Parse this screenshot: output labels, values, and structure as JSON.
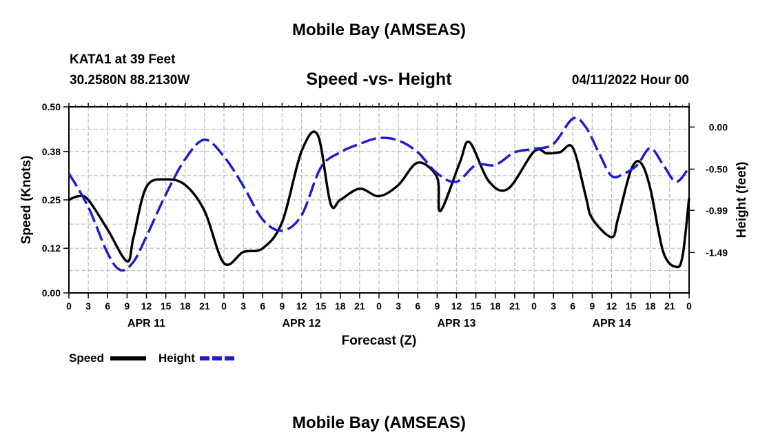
{
  "header": {
    "title_top": "Mobile Bay (AMSEAS)",
    "station": "KATA1 at 39 Feet",
    "coords": "30.2580N  88.2130W",
    "chart_title": "Speed -vs- Height",
    "datetime": "04/11/2022 Hour 00",
    "title_bottom": "Mobile Bay (AMSEAS)"
  },
  "legend": {
    "speed_label": "Speed",
    "height_label": "Height"
  },
  "colors": {
    "speed": "#000000",
    "height": "#1c1cd0",
    "grid": "#b8b8b8"
  },
  "chart_data": {
    "type": "line",
    "xlabel": "Forecast (Z)",
    "ylabel": "Speed (Knots)",
    "ylabel_right": "Height (feet)",
    "x_range": [
      0,
      96
    ],
    "x_tick_labels": [
      "0",
      "3",
      "6",
      "9",
      "12",
      "15",
      "18",
      "21",
      "0",
      "3",
      "6",
      "9",
      "12",
      "15",
      "18",
      "21",
      "0",
      "3",
      "6",
      "9",
      "12",
      "15",
      "18",
      "21",
      "0",
      "3",
      "6",
      "9",
      "12",
      "15",
      "18",
      "21",
      "0"
    ],
    "date_labels": [
      {
        "label": "APR 11",
        "hour": 12
      },
      {
        "label": "APR 12",
        "hour": 36
      },
      {
        "label": "APR 13",
        "hour": 60
      },
      {
        "label": "APR 14",
        "hour": 84
      }
    ],
    "y_left": {
      "range": [
        0,
        0.5
      ],
      "ticks": [
        0.0,
        0.12,
        0.25,
        0.38,
        0.5
      ],
      "tick_labels": [
        "0.00",
        "0.12",
        "0.25",
        "0.38",
        "0.50"
      ]
    },
    "y_right": {
      "range": [
        -1.97,
        0.24
      ],
      "ticks": [
        0.0,
        -0.5,
        -0.99,
        -1.49
      ],
      "tick_labels": [
        "0.00",
        "-0.50",
        "-0.99",
        "-1.49"
      ]
    },
    "series": [
      {
        "name": "Speed",
        "axis": "left",
        "style": "solid",
        "points": [
          [
            0,
            0.25
          ],
          [
            1.5,
            0.26
          ],
          [
            3,
            0.25
          ],
          [
            6,
            0.17
          ],
          [
            9,
            0.085
          ],
          [
            10,
            0.15
          ],
          [
            12,
            0.285
          ],
          [
            15,
            0.305
          ],
          [
            18,
            0.29
          ],
          [
            21,
            0.22
          ],
          [
            24,
            0.08
          ],
          [
            27,
            0.11
          ],
          [
            30,
            0.12
          ],
          [
            33,
            0.19
          ],
          [
            36,
            0.38
          ],
          [
            38.5,
            0.425
          ],
          [
            40.5,
            0.24
          ],
          [
            42,
            0.25
          ],
          [
            45,
            0.28
          ],
          [
            48,
            0.26
          ],
          [
            51,
            0.29
          ],
          [
            54,
            0.35
          ],
          [
            57,
            0.31
          ],
          [
            57.5,
            0.22
          ],
          [
            60.5,
            0.35
          ],
          [
            62,
            0.405
          ],
          [
            65,
            0.3
          ],
          [
            68,
            0.28
          ],
          [
            72,
            0.38
          ],
          [
            74,
            0.375
          ],
          [
            76,
            0.378
          ],
          [
            78,
            0.39
          ],
          [
            80,
            0.26
          ],
          [
            81,
            0.2
          ],
          [
            84,
            0.15
          ],
          [
            85,
            0.2
          ],
          [
            87,
            0.33
          ],
          [
            88.5,
            0.35
          ],
          [
            90,
            0.28
          ],
          [
            92,
            0.11
          ],
          [
            94,
            0.07
          ],
          [
            95,
            0.1
          ],
          [
            96,
            0.255
          ]
        ]
      },
      {
        "name": "Height",
        "axis": "right",
        "style": "dashed",
        "points": [
          [
            0,
            -0.55
          ],
          [
            3,
            -0.95
          ],
          [
            6,
            -1.5
          ],
          [
            8,
            -1.7
          ],
          [
            10,
            -1.6
          ],
          [
            12,
            -1.3
          ],
          [
            15,
            -0.8
          ],
          [
            18,
            -0.38
          ],
          [
            21,
            -0.15
          ],
          [
            24,
            -0.35
          ],
          [
            27,
            -0.7
          ],
          [
            30,
            -1.1
          ],
          [
            33,
            -1.23
          ],
          [
            36,
            -1.05
          ],
          [
            39,
            -0.48
          ],
          [
            42,
            -0.3
          ],
          [
            45,
            -0.2
          ],
          [
            48,
            -0.13
          ],
          [
            51,
            -0.16
          ],
          [
            54,
            -0.3
          ],
          [
            57,
            -0.55
          ],
          [
            60,
            -0.65
          ],
          [
            63,
            -0.45
          ],
          [
            66,
            -0.45
          ],
          [
            69,
            -0.3
          ],
          [
            72,
            -0.26
          ],
          [
            75,
            -0.2
          ],
          [
            78,
            0.1
          ],
          [
            80,
            0.0
          ],
          [
            82,
            -0.3
          ],
          [
            84,
            -0.58
          ],
          [
            86,
            -0.55
          ],
          [
            88,
            -0.45
          ],
          [
            90,
            -0.25
          ],
          [
            92,
            -0.45
          ],
          [
            94,
            -0.65
          ],
          [
            96,
            -0.48
          ]
        ]
      }
    ]
  }
}
